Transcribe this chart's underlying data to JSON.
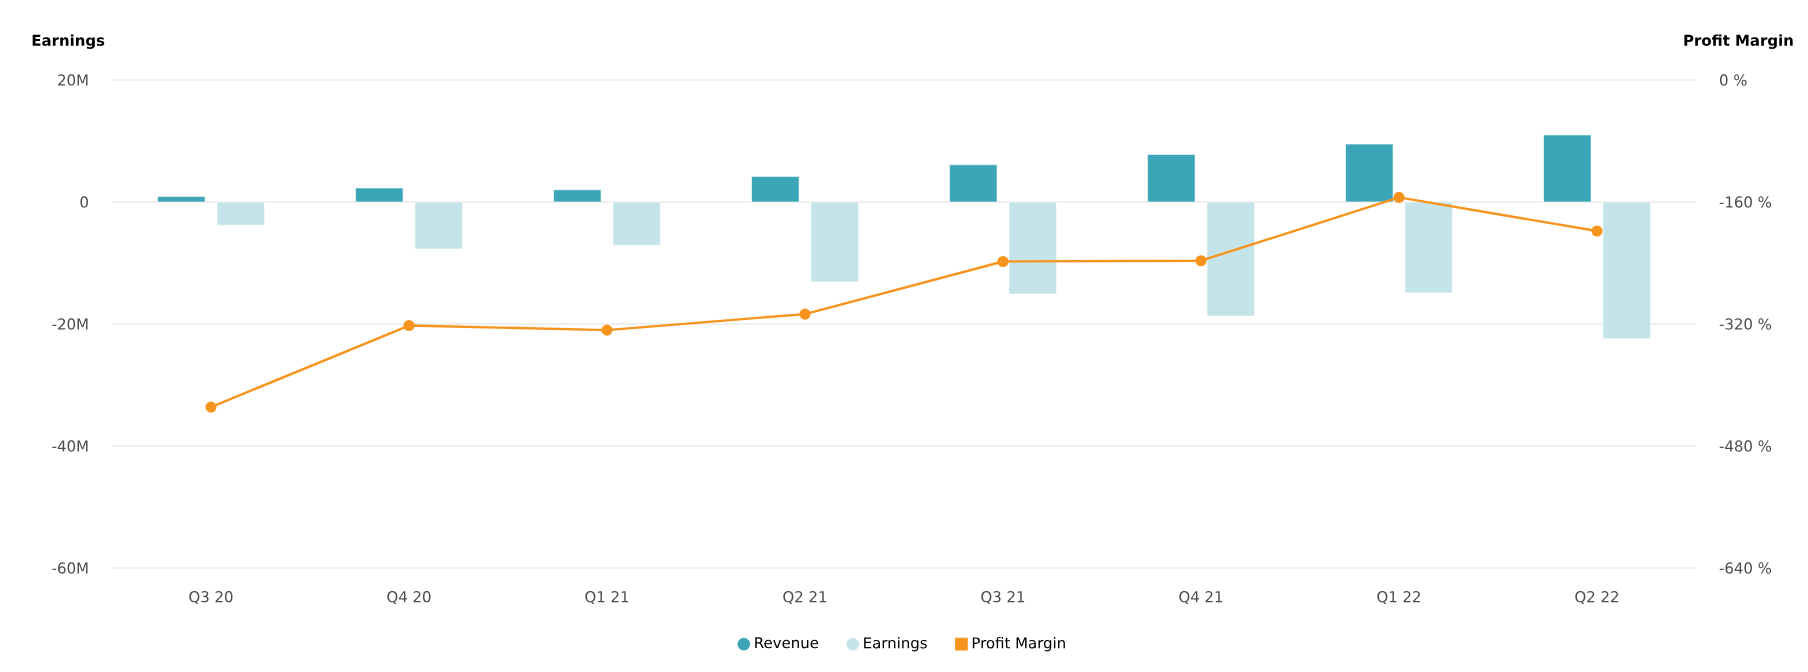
{
  "chart_data": {
    "type": "bar",
    "ylabel": "Earnings",
    "y2label": "Profit Margin",
    "categories": [
      "Q3 20",
      "Q4 20",
      "Q1 21",
      "Q2 21",
      "Q3 21",
      "Q4 21",
      "Q1 22",
      "Q2 22"
    ],
    "series": [
      {
        "name": "Revenue",
        "color": "#3ca6b8",
        "values": [
          0.9,
          2.3,
          2.0,
          4.2,
          6.1,
          7.8,
          9.5,
          11.0
        ]
      },
      {
        "name": "Earnings",
        "color": "#c5e4e9",
        "values": [
          -3.8,
          -7.7,
          -7.1,
          -13.1,
          -15.1,
          -18.7,
          -14.9,
          -22.4
        ]
      },
      {
        "name": "Profit Margin",
        "color": "#f7941d",
        "type": "line",
        "axis": "y2",
        "values": [
          -429,
          -322,
          -328,
          -307,
          -238,
          -237,
          -154,
          -198
        ]
      }
    ],
    "ylim": [
      -60,
      20
    ],
    "yticks": [
      {
        "value": -60,
        "label": "-60M"
      },
      {
        "value": -40,
        "label": "-40M"
      },
      {
        "value": -20,
        "label": "-20M"
      },
      0,
      {
        "value": 20,
        "label": "20M"
      }
    ],
    "y2lim": [
      -640,
      0
    ],
    "y2ticks": [
      {
        "value": -640,
        "label": "-640 %"
      },
      {
        "value": -480,
        "label": "-480 %"
      },
      {
        "value": -320,
        "label": "-320 %"
      },
      {
        "value": -160,
        "label": "-160 %"
      },
      {
        "value": 0,
        "label": "0 %"
      }
    ],
    "grid": "y",
    "legend": "bottom",
    "marker": "circle",
    "line_style": "solid"
  }
}
